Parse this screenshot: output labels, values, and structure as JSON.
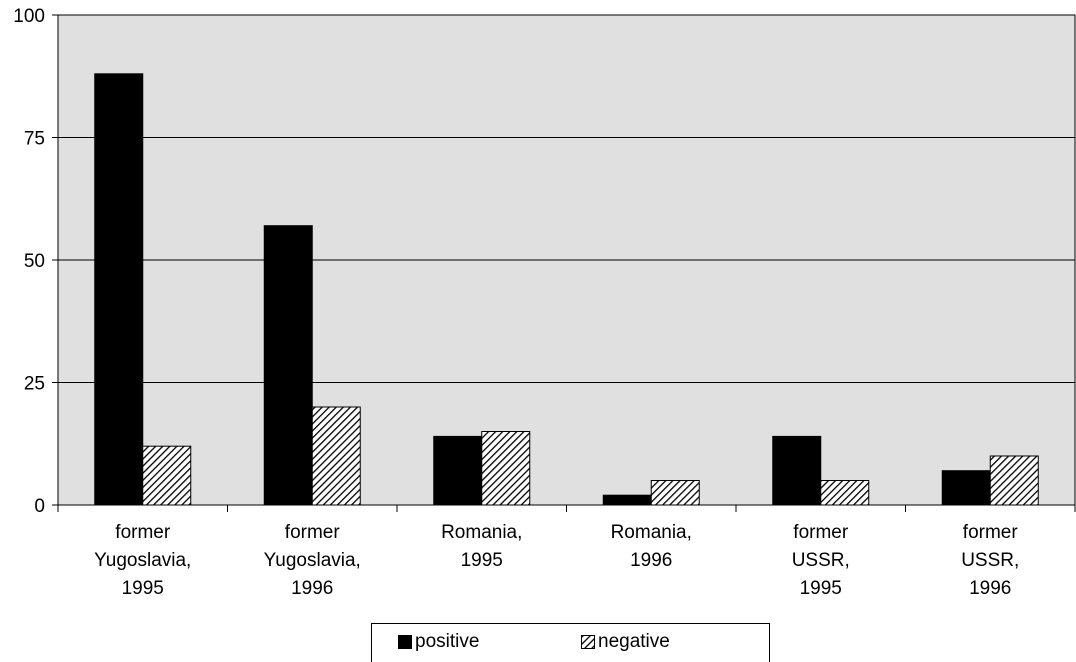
{
  "chart_data": {
    "type": "bar",
    "categories": [
      [
        "former",
        "Yugoslavia,",
        "1995"
      ],
      [
        "former",
        "Yugoslavia,",
        "1996"
      ],
      [
        "Romania,",
        "1995"
      ],
      [
        "Romania,",
        "1996"
      ],
      [
        "former",
        "USSR,",
        "1995"
      ],
      [
        "former",
        "USSR,",
        "1996"
      ]
    ],
    "series": [
      {
        "name": "positive",
        "values": [
          88,
          57,
          14,
          2,
          14,
          7
        ],
        "fill": "solid",
        "color": "#000000"
      },
      {
        "name": "negative",
        "values": [
          12,
          20,
          15,
          5,
          5,
          10
        ],
        "fill": "diagonal-hatch",
        "color": "#000000"
      }
    ],
    "ylim": [
      0,
      100
    ],
    "yticks": [
      "0",
      "25",
      "50",
      "75",
      "100"
    ],
    "grid": true,
    "plot_background": "#e0e0e0",
    "legend_position": "bottom"
  }
}
